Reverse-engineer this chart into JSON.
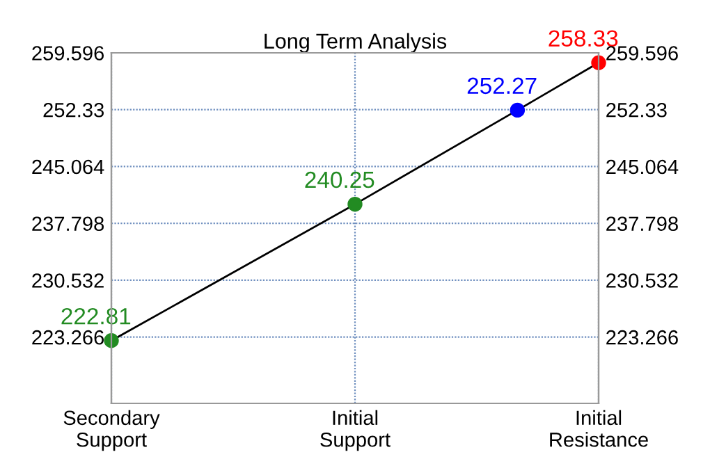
{
  "chart_data": {
    "type": "line",
    "title": "Long Term Analysis",
    "categories": [
      "Secondary\nSupport",
      null,
      null,
      "Initial\nSupport",
      null,
      null,
      "Initial\nResistance"
    ],
    "ylim": [
      214.79,
      259.596
    ],
    "yticks": [
      223.266,
      230.532,
      237.798,
      245.064,
      252.33,
      259.596
    ],
    "y2lim": [
      214.79,
      259.596
    ],
    "y2ticks": [
      223.266,
      230.532,
      237.798,
      245.064,
      252.33,
      259.596
    ],
    "grid": true,
    "series": [
      {
        "color": "#000000",
        "values": [
          222.81,
          null,
          null,
          240.25,
          null,
          252.27,
          258.33
        ],
        "marker": "none"
      },
      {
        "type": "scatter",
        "color": "#228b22",
        "values": [
          222.81,
          null,
          null,
          240.25,
          null,
          null,
          null
        ],
        "value_labels": [
          "222.81",
          null,
          null,
          "240.25",
          null,
          null,
          null
        ],
        "marker": "circle"
      },
      {
        "type": "scatter",
        "color": "#0000ff",
        "values": [
          null,
          null,
          null,
          null,
          null,
          252.27,
          null
        ],
        "value_labels": [
          null,
          null,
          null,
          null,
          null,
          "252.27",
          null
        ],
        "marker": "circle"
      },
      {
        "type": "scatter",
        "color": "#ff0000",
        "values": [
          null,
          null,
          null,
          null,
          null,
          null,
          258.33
        ],
        "value_labels": [
          null,
          null,
          null,
          null,
          null,
          null,
          "258.33"
        ],
        "marker": "circle"
      }
    ]
  }
}
